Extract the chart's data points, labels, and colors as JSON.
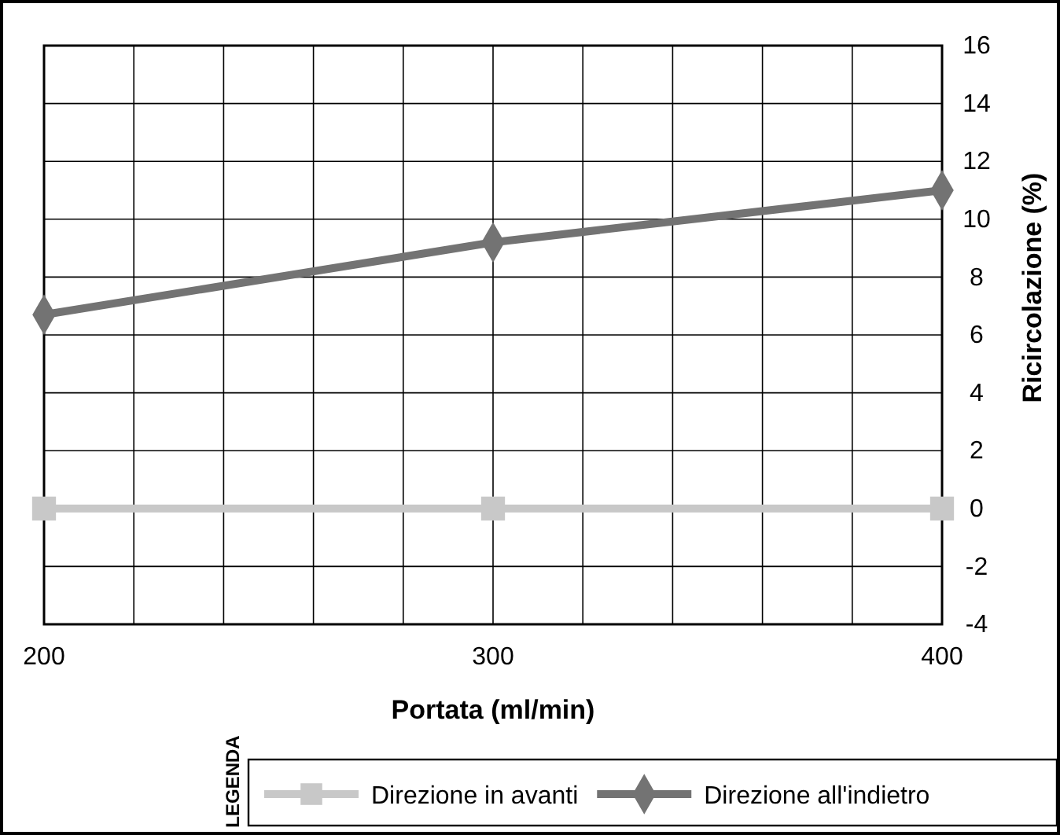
{
  "chart_data": {
    "type": "line",
    "xlabel": "Portata (ml/min)",
    "ylabel": "Ricircolazione (%)",
    "legend_title": "LEGENDA",
    "x": [
      200,
      300,
      400
    ],
    "series": [
      {
        "name": "Direzione in avanti",
        "color": "#c8c8c8",
        "values": [
          0,
          0,
          0
        ],
        "marker": "square"
      },
      {
        "name": "Direzione all'indietro",
        "color": "#737373",
        "values": [
          6.7,
          9.2,
          11.0
        ],
        "marker": "diamond"
      }
    ],
    "xlim": [
      200,
      400
    ],
    "xticks": [
      200,
      {
        "value": 220,
        "label": null
      },
      {
        "value": 240,
        "label": null
      },
      {
        "value": 260,
        "label": null
      },
      {
        "value": 280,
        "label": null
      },
      300,
      {
        "value": 320,
        "label": null
      },
      {
        "value": 340,
        "label": null
      },
      {
        "value": 360,
        "label": null
      },
      {
        "value": 380,
        "label": null
      },
      400
    ],
    "ylim": [
      -4,
      16
    ],
    "yticks": [
      -4,
      -2,
      0,
      2,
      4,
      6,
      8,
      10,
      12,
      14,
      16
    ],
    "grid": true,
    "legend": "bottom"
  }
}
